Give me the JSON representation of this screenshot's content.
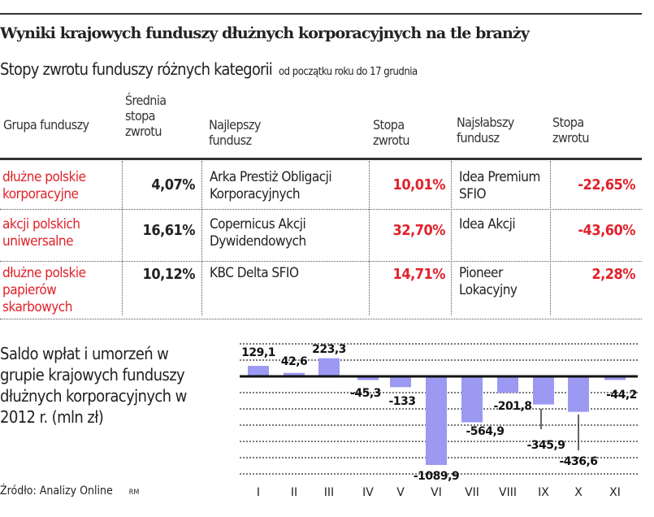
{
  "title": "Wyniki krajowych funduszy dłużnych korporacyjnych na tle branży",
  "subtitle": "Stopy zwrotu funduszy różnych kategorii",
  "subtitle_note": "od początku roku do 17 grudnia",
  "table": {
    "headers": [
      "Grupa funduszy",
      "Średnia stopa zwrotu",
      "Najlepszy fundusz",
      "Stopa zwrotu",
      "Najsłabszy fundusz",
      "Stopa zwrotu"
    ],
    "rows": [
      {
        "group": "dłużne polskie korporacyjne",
        "avg": "4,07%",
        "best": "Arka Prestiż Obligacji Korporacyjnych",
        "best_rate": "10,01%",
        "worst": "Idea Premium SFIO",
        "worst_rate": "-22,65%"
      },
      {
        "group": "akcji polskich uniwersalne",
        "avg": "16,61%",
        "best": "Copernicus Akcji Dywidendowych",
        "best_rate": "32,70%",
        "worst": "Idea Akcji",
        "worst_rate": "-43,60%"
      },
      {
        "group": "dłużne polskie papierów skarbowych",
        "avg": "10,12%",
        "best": "KBC Delta SFIO",
        "best_rate": "14,71%",
        "worst": "Pioneer Lokacyjny",
        "worst_rate": "2,28%"
      }
    ]
  },
  "chart_label": "Saldo wpłat i umorzeń w grupie krajowych funduszy dłużnych korporacyjnych w 2012 r. (mln zł)",
  "source": "Źródło: Analizy Online",
  "author": "RM",
  "colors": {
    "bar": "#9b99f2",
    "red": "#e0222a"
  },
  "chart_data": {
    "type": "bar",
    "title": "Saldo wpłat i umorzeń w grupie krajowych funduszy dłużnych korporacyjnych w 2012 r. (mln zł)",
    "categories": [
      "I",
      "II",
      "III",
      "IV",
      "V",
      "VI",
      "VII",
      "VIII",
      "IX",
      "X",
      "XI"
    ],
    "values": [
      129.1,
      42.6,
      223.3,
      -45.3,
      -133,
      -1089.9,
      -564.9,
      -201.8,
      -345.9,
      -436.6,
      -44.2
    ],
    "labels": [
      "129,1",
      "42,6",
      "223,3",
      "-45,3",
      "-133",
      "-1089,9",
      "-564,9",
      "-201,8",
      "-345,9",
      "-436,6",
      "-44,2"
    ],
    "ylim": [
      -1200,
      400
    ],
    "grid_step": 200,
    "grid": true,
    "xlabel": "",
    "ylabel": "mln zł"
  }
}
